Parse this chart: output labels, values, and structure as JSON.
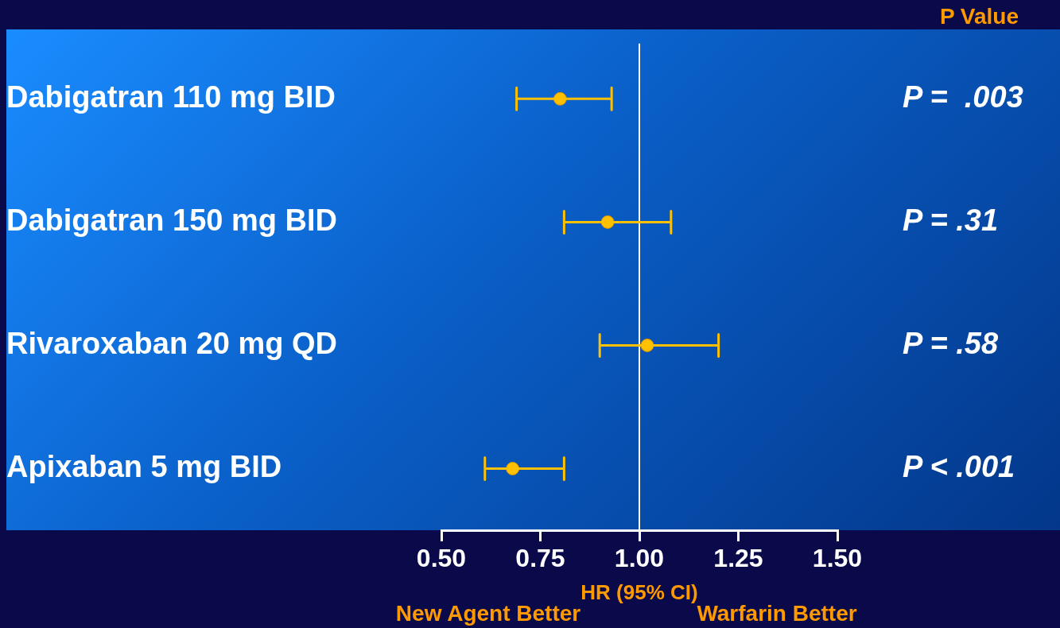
{
  "chart_data": {
    "type": "scatter",
    "orientation": "horizontal",
    "xlabel": "HR (95% CI)",
    "categories": [
      "Dabigatran 110 mg BID",
      "Dabigatran 150 mg BID",
      "Rivaroxaban 20 mg QD",
      "Apixaban 5 mg BID"
    ],
    "series": [
      {
        "color": "#ffc000",
        "values": [
          0.8,
          0.92,
          1.02,
          0.68
        ],
        "errors": [
          [
            0.69,
            0.93
          ],
          [
            0.81,
            1.08
          ],
          [
            0.9,
            1.2
          ],
          [
            0.61,
            0.81
          ]
        ]
      }
    ],
    "xlim": [
      0.5,
      1.5
    ],
    "xticks": [
      {
        "value": 0.5,
        "label": "0.50"
      },
      {
        "value": 0.75,
        "label": "0.75"
      },
      {
        "value": 1.0,
        "label": "1.00"
      },
      {
        "value": 1.25,
        "label": "1.25"
      },
      {
        "value": 1.5,
        "label": "1.50"
      }
    ],
    "ref_lines": [
      {
        "axis": "x",
        "value": 1.0,
        "color": "#ffffff"
      }
    ],
    "marker": "circle",
    "grid": false,
    "legend": false,
    "annotations": [
      "P Value",
      "New Agent Better",
      "Warfarin Better",
      "P =  .003",
      "P = .31",
      "P = .58",
      "P < .001"
    ]
  }
}
